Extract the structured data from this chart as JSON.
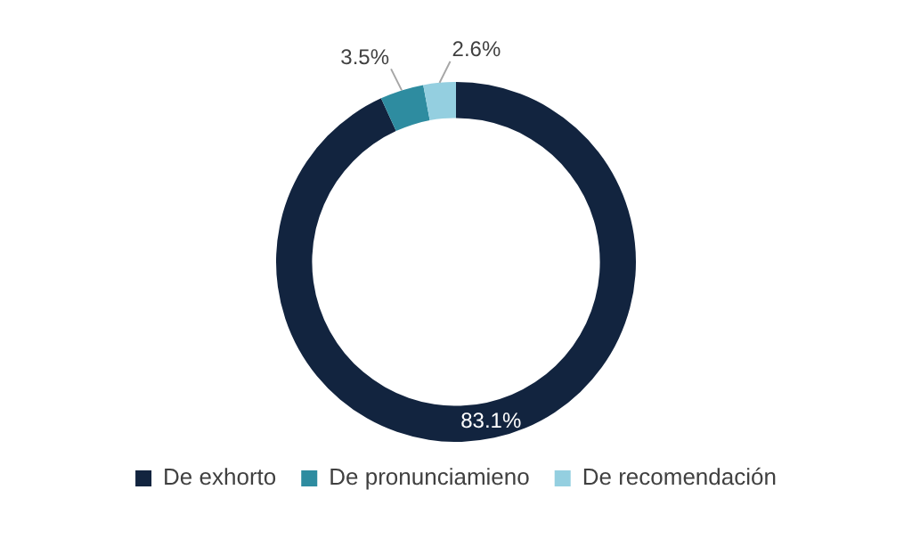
{
  "chart_data": {
    "type": "donut",
    "categories": [
      "De exhorto",
      "De pronunciamieno",
      "De recomendación"
    ],
    "values": [
      83.1,
      3.5,
      2.6
    ],
    "colors": [
      "#12243f",
      "#2e8ca0",
      "#94cfe0"
    ],
    "value_labels": [
      "83.1%",
      "3.5%",
      "2.6%"
    ],
    "legend": "bottom"
  }
}
